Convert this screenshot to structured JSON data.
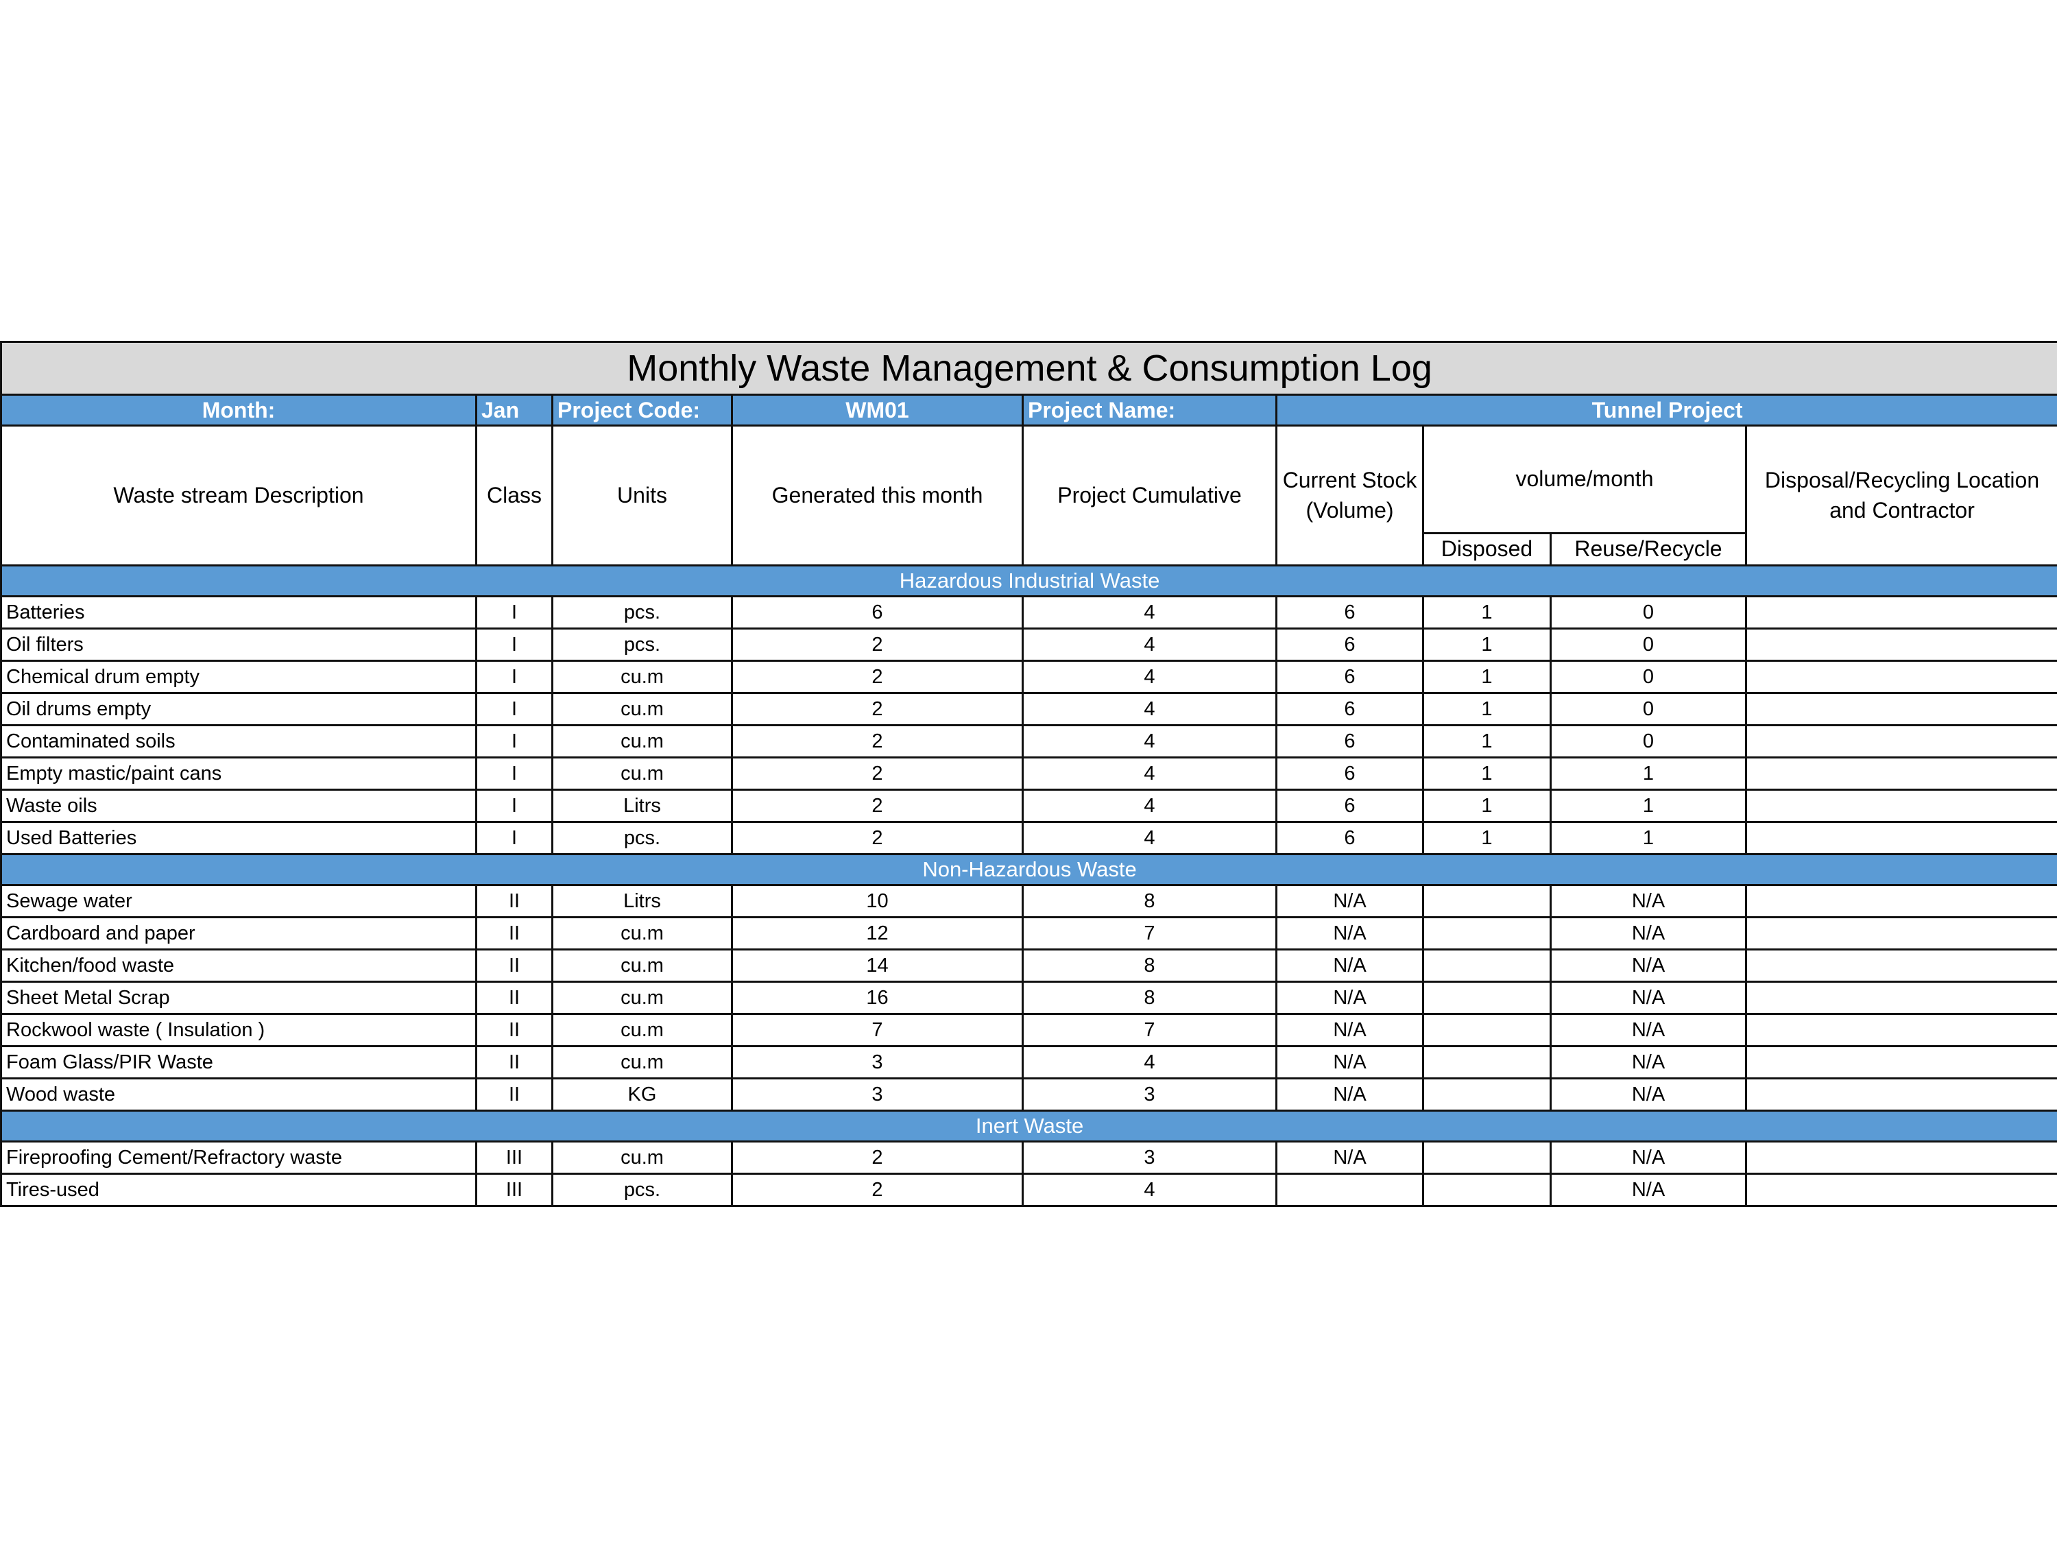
{
  "title": "Monthly  Waste Management & Consumption Log",
  "info": {
    "month_label": "Month:",
    "month": "Jan",
    "project_code_label": "Project Code:",
    "project_code": "WM01",
    "project_name_label": "Project Name:",
    "project_name": "Tunnel Project"
  },
  "columns": {
    "description": "Waste stream Description",
    "class": "Class",
    "units": "Units",
    "generated": "Generated this month",
    "cumulative": "Project Cumulative",
    "stock": "Current Stock (Volume)",
    "volume": "volume/month",
    "disposed": "Disposed",
    "reuse": "Reuse/Recycle",
    "location": "Disposal/Recycling Location and Contractor"
  },
  "sections": [
    {
      "name": "Hazardous Industrial Waste",
      "rows": [
        [
          "Batteries",
          "I",
          "pcs.",
          6,
          4,
          6,
          1,
          0
        ],
        [
          "Oil filters",
          "I",
          "pcs.",
          2,
          4,
          6,
          1,
          0
        ],
        [
          "Chemical drum empty",
          "I",
          "cu.m",
          2,
          4,
          6,
          1,
          0
        ],
        [
          "Oil drums empty",
          "I",
          "cu.m",
          2,
          4,
          6,
          1,
          0
        ],
        [
          "Contaminated soils",
          "I",
          "cu.m",
          2,
          4,
          6,
          1,
          0
        ],
        [
          "Empty mastic/paint cans",
          "I",
          "cu.m",
          2,
          4,
          6,
          1,
          1
        ],
        [
          "Waste oils",
          "I",
          "Litrs",
          2,
          4,
          6,
          1,
          1
        ],
        [
          "Used Batteries",
          "I",
          "pcs.",
          2,
          4,
          6,
          1,
          1
        ]
      ]
    },
    {
      "name": "Non-Hazardous Waste",
      "rows": [
        [
          "Sewage water",
          "II",
          "Litrs",
          10,
          8,
          "N/A",
          null,
          "N/A"
        ],
        [
          "Cardboard and paper",
          "II",
          "cu.m",
          12,
          7,
          "N/A",
          null,
          "N/A"
        ],
        [
          "Kitchen/food waste",
          "II",
          "cu.m",
          14,
          8,
          "N/A",
          null,
          "N/A"
        ],
        [
          "Sheet Metal Scrap",
          "II",
          "cu.m",
          16,
          8,
          "N/A",
          null,
          "N/A"
        ],
        [
          "Rockwool waste ( Insulation )",
          "II",
          "cu.m",
          7,
          7,
          "N/A",
          null,
          "N/A"
        ],
        [
          "Foam Glass/PIR Waste",
          "II",
          "cu.m",
          3,
          4,
          "N/A",
          null,
          "N/A"
        ],
        [
          "Wood waste",
          "II",
          "KG",
          3,
          3,
          "N/A",
          null,
          "N/A"
        ]
      ]
    },
    {
      "name": "Inert Waste",
      "rows": [
        [
          "Fireproofing Cement/Refractory waste",
          "III",
          "cu.m",
          2,
          3,
          "N/A",
          null,
          "N/A"
        ],
        [
          "Tires-used",
          "III",
          "pcs.",
          2,
          4,
          null,
          null,
          "N/A"
        ]
      ]
    }
  ]
}
